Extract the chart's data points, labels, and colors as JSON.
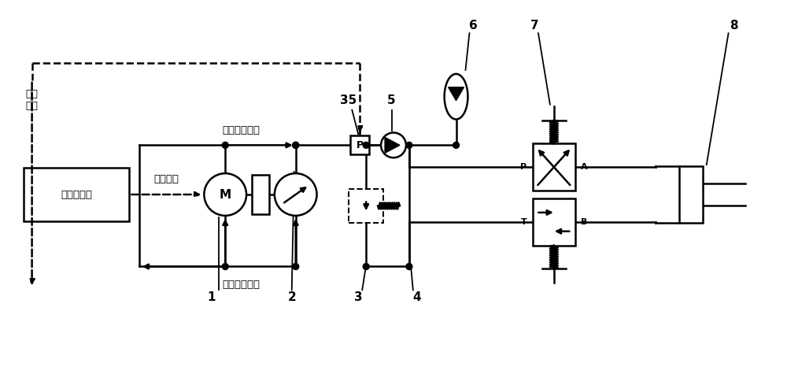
{
  "bg_color": "#ffffff",
  "line_color": "#000000",
  "lw": 1.8,
  "fig_width": 10.0,
  "fig_height": 4.94,
  "labels": {
    "pressure_signal": "压力\n信号",
    "controller": "机载控制器",
    "command_signal": "指令信号",
    "supply": "机载油笹供油",
    "return_oil": "机载油笹回油",
    "M": "M",
    "P": "P",
    "T": "T",
    "A": "A",
    "B": "B",
    "n1": "1",
    "n2": "2",
    "n3": "3",
    "n4": "4",
    "n5": "5",
    "n6": "6",
    "n7": "7",
    "n8": "8",
    "n35": "35"
  }
}
